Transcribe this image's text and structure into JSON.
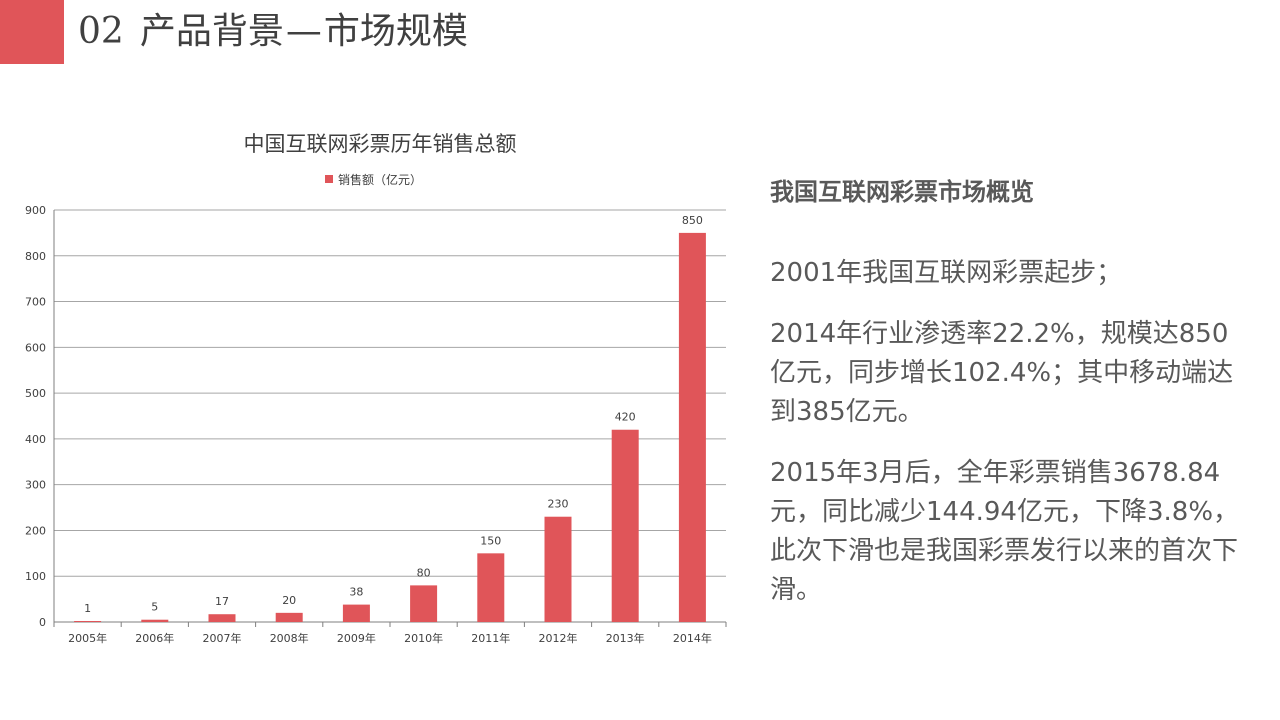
{
  "header": {
    "number": "02",
    "title_main": "产品背景",
    "separator": "—",
    "title_sub": "市场规模",
    "accent_color": "#e05559"
  },
  "sidebar": {
    "heading": "我国互联网彩票市场概览",
    "paragraphs": [
      "2001年我国互联网彩票起步；",
      "2014年行业渗透率22.2%，规模达850亿元，同步增长102.4%；其中移动端达到385亿元。",
      "2015年3月后，全年彩票销售3678.84元，同比减少144.94亿元，下降3.8%，此次下滑也是我国彩票发行以来的首次下滑。"
    ]
  },
  "chart_data": {
    "type": "bar",
    "title": "中国互联网彩票历年销售总额",
    "categories": [
      "2005年",
      "2006年",
      "2007年",
      "2008年",
      "2009年",
      "2010年",
      "2011年",
      "2012年",
      "2013年",
      "2014年"
    ],
    "series": [
      {
        "name": "销售额（亿元）",
        "values": [
          1,
          5,
          17,
          20,
          38,
          80,
          150,
          230,
          420,
          850
        ],
        "color": "#e05559"
      }
    ],
    "yticks": [
      0,
      100,
      200,
      300,
      400,
      500,
      600,
      700,
      800,
      900
    ],
    "ylim": [
      0,
      900
    ],
    "grid": true,
    "legend_position": "top",
    "data_labels": true
  }
}
